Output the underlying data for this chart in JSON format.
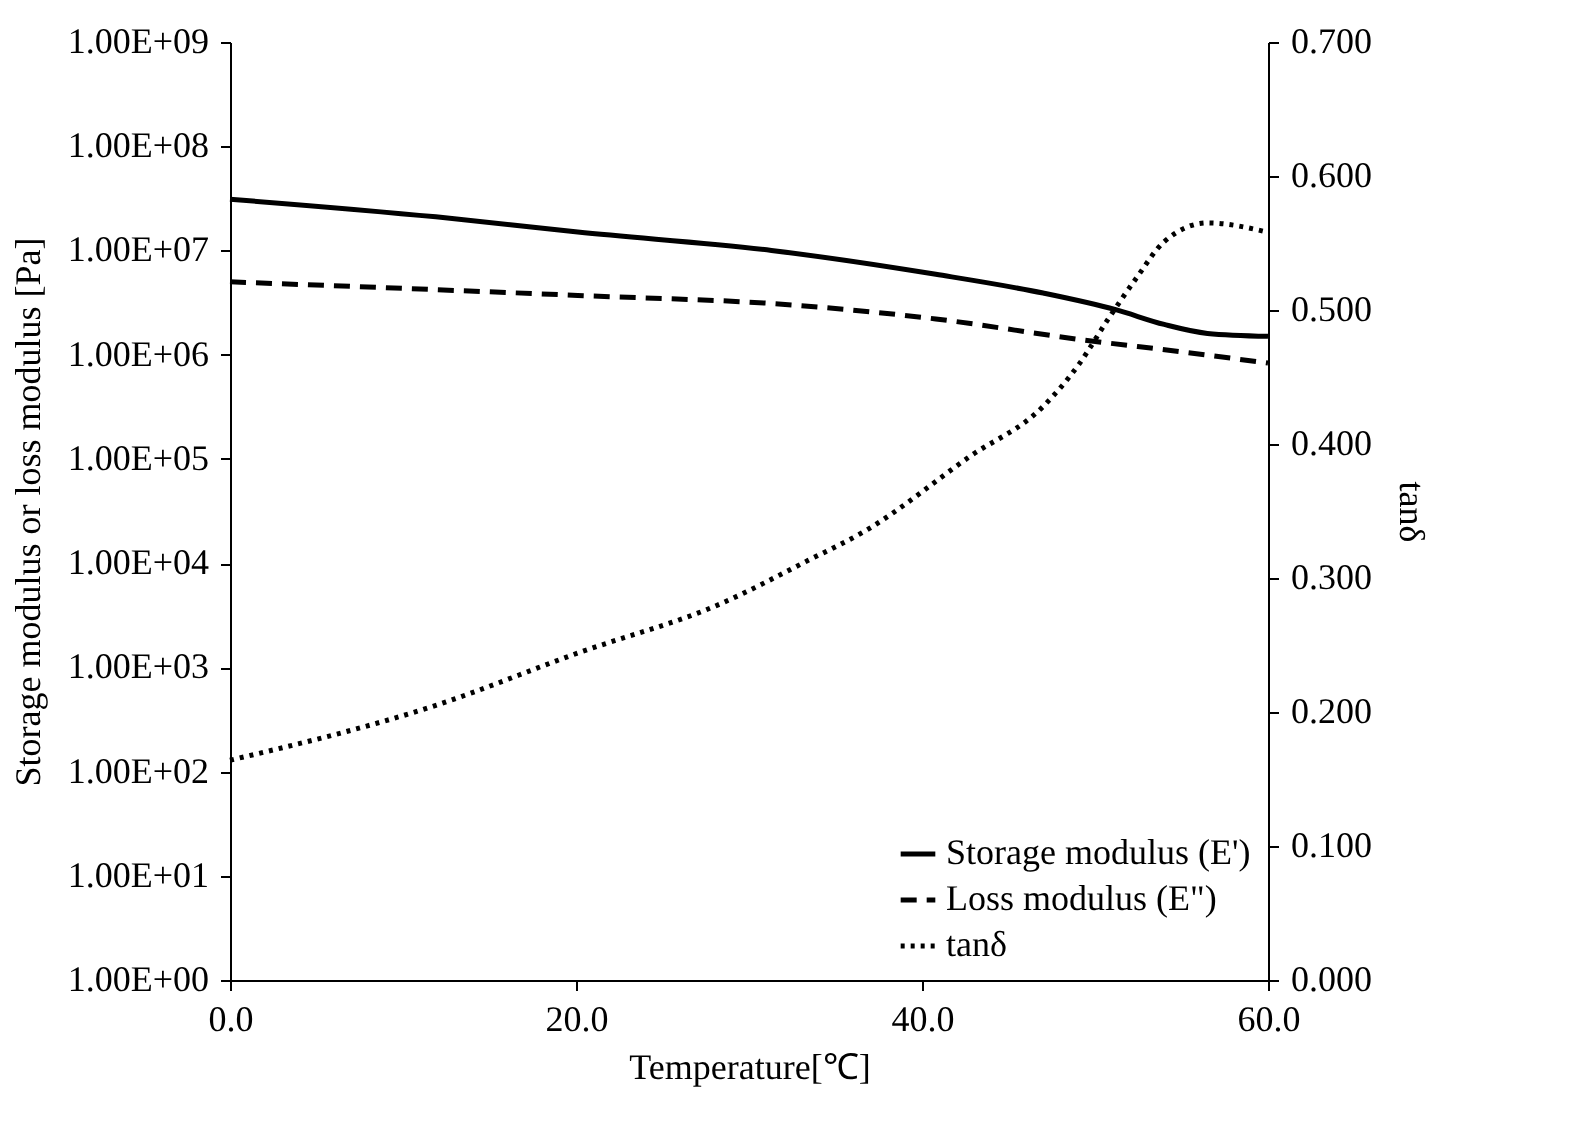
{
  "chart_data": {
    "type": "line",
    "xlabel": "Temperature[℃]",
    "ylabel": "Storage modulus or loss modulus [Pa]",
    "y2label": "tanδ",
    "log": "y",
    "xlim": [
      0,
      60
    ],
    "xticks": [
      {
        "value": 0,
        "label": "0.0"
      },
      {
        "value": 20,
        "label": "20.0"
      },
      {
        "value": 40,
        "label": "40.0"
      },
      {
        "value": 60,
        "label": "60.0"
      }
    ],
    "ylim": [
      1,
      1000000000
    ],
    "yticks": [
      {
        "value": 1,
        "label": "1.00E+00"
      },
      {
        "value": 10,
        "label": "1.00E+01"
      },
      {
        "value": 100,
        "label": "1.00E+02"
      },
      {
        "value": 1000,
        "label": "1.00E+03"
      },
      {
        "value": 10000,
        "label": "1.00E+04"
      },
      {
        "value": 100000,
        "label": "1.00E+05"
      },
      {
        "value": 1000000,
        "label": "1.00E+06"
      },
      {
        "value": 10000000,
        "label": "1.00E+07"
      },
      {
        "value": 100000000,
        "label": "1.00E+08"
      },
      {
        "value": 1000000000,
        "label": "1.00E+09"
      }
    ],
    "y2lim": [
      0,
      0.7
    ],
    "y2ticks": [
      {
        "value": 0,
        "label": "0.000"
      },
      {
        "value": 0.1,
        "label": "0.100"
      },
      {
        "value": 0.2,
        "label": "0.200"
      },
      {
        "value": 0.3,
        "label": "0.300"
      },
      {
        "value": 0.4,
        "label": "0.400"
      },
      {
        "value": 0.5,
        "label": "0.500"
      },
      {
        "value": 0.6,
        "label": "0.600"
      },
      {
        "value": 0.7,
        "label": "0.700"
      }
    ],
    "grid": false,
    "legend": "bottom right",
    "marker": "none",
    "series": [
      {
        "name": "Storage modulus (E')",
        "color": "#000000",
        "line_style": "solid",
        "x": [
          0,
          11.9,
          20.1,
          31.3,
          40.8,
          47.0,
          51.2,
          54.0,
          56.5,
          60
        ],
        "values": [
          31000000,
          21000000,
          15000000,
          10000000,
          5900000,
          3900000,
          2700000,
          1950000,
          1600000,
          1500000
        ]
      },
      {
        "name": "Loss modulus (E\")",
        "color": "#000000",
        "line_style": "dashed",
        "x": [
          0,
          20.1,
          32.5,
          40.8,
          49.1,
          55.3,
          60
        ],
        "values": [
          5000000,
          3700000,
          3000000,
          2200000,
          1400000,
          1050000,
          830000
        ]
      },
      {
        "name": "tanδ",
        "color": "#000000",
        "line_style": "dotted",
        "axis": "y2",
        "x": [
          0,
          11.9,
          20.1,
          28.4,
          33.4,
          36.7,
          42.8,
          47.0,
          49.1,
          50.7,
          52.4,
          54.0,
          56.5,
          60
        ],
        "values": [
          0.164,
          0.205,
          0.244,
          0.281,
          0.313,
          0.335,
          0.391,
          0.428,
          0.46,
          0.492,
          0.524,
          0.551,
          0.565,
          0.558
        ]
      }
    ]
  }
}
